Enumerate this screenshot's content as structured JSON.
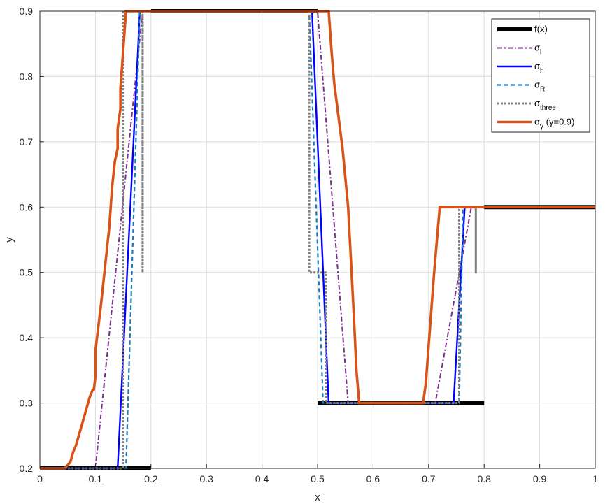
{
  "chart_data": {
    "type": "line",
    "xlabel": "x",
    "ylabel": "y",
    "xlim": [
      0,
      1
    ],
    "ylim": [
      0.2,
      0.9
    ],
    "grid": true,
    "legend_position": "top-right",
    "x_ticks": [
      "0",
      "0.1",
      "0.2",
      "0.3",
      "0.4",
      "0.5",
      "0.6",
      "0.7",
      "0.8",
      "0.9",
      "1"
    ],
    "y_ticks": [
      "0.2",
      "0.3",
      "0.4",
      "0.5",
      "0.6",
      "0.7",
      "0.8",
      "0.9"
    ],
    "series": [
      {
        "name": "f(x)",
        "legend_main": "f(x)",
        "legend_sub": "",
        "legend_suffix": "",
        "color": "#000000",
        "style": "solid",
        "segments": [
          [
            [
              0,
              0.2
            ],
            [
              0.2,
              0.2
            ]
          ],
          [
            [
              0.2,
              0.9
            ],
            [
              0.5,
              0.9
            ]
          ],
          [
            [
              0.5,
              0.3
            ],
            [
              0.8,
              0.3
            ]
          ],
          [
            [
              0.8,
              0.6
            ],
            [
              1.0,
              0.6
            ]
          ]
        ]
      },
      {
        "name": "σl",
        "legend_main": "σ",
        "legend_sub": "l",
        "legend_suffix": "",
        "color": "#7E2F8E",
        "style": "dashdot",
        "segments": [
          [
            [
              0,
              0.2
            ],
            [
              0.1,
              0.2
            ],
            [
              0.185,
              0.9
            ],
            [
              0.5,
              0.9
            ],
            [
              0.555,
              0.3
            ],
            [
              0.712,
              0.3
            ],
            [
              0.777,
              0.6
            ],
            [
              1.0,
              0.6
            ]
          ]
        ]
      },
      {
        "name": "σh",
        "legend_main": "σ",
        "legend_sub": "h",
        "legend_suffix": "",
        "color": "#0000FF",
        "style": "solid",
        "segments": [
          [
            [
              0,
              0.2
            ],
            [
              0.14,
              0.2
            ],
            [
              0.18,
              0.9
            ],
            [
              0.5,
              0.9
            ],
            [
              0.49,
              0.9
            ],
            [
              0.52,
              0.3
            ],
            [
              0.745,
              0.3
            ],
            [
              0.765,
              0.6
            ],
            [
              1.0,
              0.6
            ]
          ]
        ]
      },
      {
        "name": "σR",
        "legend_main": "σ",
        "legend_sub": "R",
        "legend_suffix": "",
        "color": "#1C7CC0",
        "style": "dashed",
        "segments": [
          [
            [
              0,
              0.2
            ],
            [
              0.155,
              0.2
            ],
            [
              0.18,
              0.9
            ],
            [
              0.5,
              0.9
            ],
            [
              0.485,
              0.9
            ],
            [
              0.51,
              0.3
            ],
            [
              0.755,
              0.3
            ],
            [
              0.762,
              0.6
            ],
            [
              1.0,
              0.6
            ]
          ]
        ]
      },
      {
        "name": "σthree",
        "legend_main": "σ",
        "legend_sub": "three",
        "legend_suffix": "",
        "color": "#7F7F7F",
        "style": "dotted",
        "segments": [
          [
            [
              0,
              0.2
            ],
            [
              0.15,
              0.2
            ],
            [
              0.15,
              0.5
            ],
            [
              0.15,
              0.9
            ],
            [
              0.185,
              0.9
            ],
            [
              0.185,
              0.5
            ],
            [
              0.185,
              0.9
            ],
            [
              0.5,
              0.9
            ],
            [
              0.485,
              0.9
            ],
            [
              0.485,
              0.5
            ],
            [
              0.515,
              0.5
            ],
            [
              0.515,
              0.3
            ],
            [
              0.755,
              0.3
            ],
            [
              0.755,
              0.5
            ],
            [
              0.755,
              0.6
            ],
            [
              0.785,
              0.6
            ],
            [
              0.785,
              0.5
            ],
            [
              0.785,
              0.6
            ],
            [
              1.0,
              0.6
            ]
          ]
        ]
      },
      {
        "name": "σγ (γ=0.9)",
        "legend_main": "σ",
        "legend_sub": "γ",
        "legend_suffix": " (γ=0.9)",
        "color": "#D95319",
        "style": "solid-thick",
        "segments": [
          [
            [
              0,
              0.2
            ],
            [
              0.045,
              0.2
            ],
            [
              0.055,
              0.21
            ],
            [
              0.06,
              0.225
            ],
            [
              0.065,
              0.235
            ],
            [
              0.07,
              0.25
            ],
            [
              0.09,
              0.31
            ],
            [
              0.095,
              0.32
            ],
            [
              0.097,
              0.32
            ],
            [
              0.1,
              0.34
            ],
            [
              0.1,
              0.38
            ],
            [
              0.11,
              0.45
            ],
            [
              0.125,
              0.57
            ],
            [
              0.13,
              0.63
            ],
            [
              0.135,
              0.67
            ],
            [
              0.14,
              0.69
            ],
            [
              0.14,
              0.72
            ],
            [
              0.145,
              0.75
            ],
            [
              0.145,
              0.78
            ],
            [
              0.15,
              0.84
            ],
            [
              0.155,
              0.9
            ],
            [
              0.5,
              0.9
            ],
            [
              0.52,
              0.9
            ],
            [
              0.525,
              0.84
            ],
            [
              0.53,
              0.79
            ],
            [
              0.545,
              0.69
            ],
            [
              0.555,
              0.6
            ],
            [
              0.565,
              0.44
            ],
            [
              0.57,
              0.35
            ],
            [
              0.575,
              0.3
            ],
            [
              0.69,
              0.3
            ],
            [
              0.695,
              0.33
            ],
            [
              0.71,
              0.5
            ],
            [
              0.72,
              0.6
            ],
            [
              1.0,
              0.6
            ]
          ]
        ]
      }
    ]
  }
}
